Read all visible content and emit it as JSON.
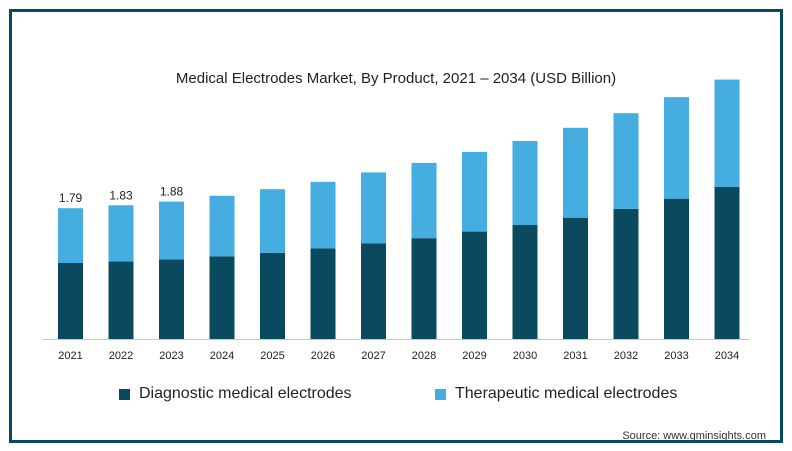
{
  "chart_data": {
    "type": "bar",
    "stacked": true,
    "title": "Medical Electrodes Market, By Product, 2021 – 2034 (USD Billion)",
    "categories": [
      "2021",
      "2022",
      "2023",
      "2024",
      "2025",
      "2026",
      "2027",
      "2028",
      "2029",
      "2030",
      "2031",
      "2032",
      "2033",
      "2034"
    ],
    "series": [
      {
        "name": "Diagnostic medical electrodes",
        "color": "#0b4a5e",
        "values": [
          1.04,
          1.06,
          1.09,
          1.13,
          1.18,
          1.24,
          1.31,
          1.38,
          1.47,
          1.56,
          1.66,
          1.78,
          1.92,
          2.08
        ]
      },
      {
        "name": "Therapeutic medical electrodes",
        "color": "#45ade0",
        "values": [
          0.75,
          0.77,
          0.79,
          0.83,
          0.87,
          0.91,
          0.97,
          1.03,
          1.09,
          1.15,
          1.23,
          1.31,
          1.39,
          1.47
        ]
      }
    ],
    "data_labels": [
      "1.79",
      "1.83",
      "1.88"
    ],
    "ylim": [
      0,
      3.9
    ],
    "grid": false,
    "legend": "bottom"
  },
  "source": "Source: www.gminsights.com"
}
